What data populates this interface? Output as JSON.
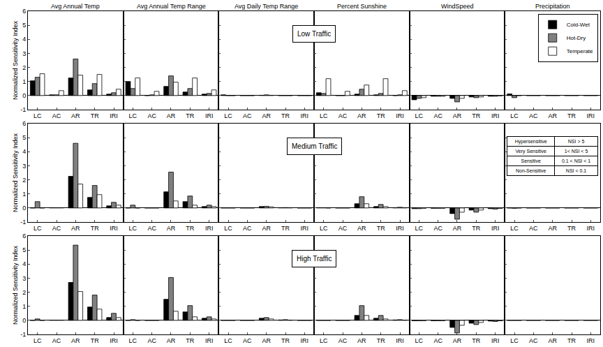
{
  "chart_data": [
    {
      "type": "bar",
      "title": "Avg Annual Temp",
      "y_label": "Normalized Sensitivity Index",
      "categories": [
        "LC",
        "AC",
        "AR",
        "TR",
        "IRI"
      ],
      "series": [
        {
          "name": "Cold-Wet",
          "color": "#000000",
          "values": [
            1.05,
            0.05,
            1.25,
            0.4,
            0.1
          ]
        },
        {
          "name": "Hot-Dry",
          "color": "#808080",
          "values": [
            1.3,
            0.05,
            2.6,
            0.85,
            0.2
          ]
        },
        {
          "name": "Temperate",
          "color": "#ffffff",
          "values": [
            1.55,
            0.35,
            1.45,
            1.5,
            0.45
          ]
        }
      ],
      "ylim": [
        -1,
        6
      ],
      "yticks": [
        -1,
        0,
        1,
        2,
        3,
        4,
        5,
        6
      ],
      "grid": false
    },
    {
      "type": "bar",
      "title": "Avg Annual Temp Range",
      "tick_labels": "x",
      "categories": [
        "LC",
        "AC",
        "AR",
        "TR",
        "IRI"
      ],
      "series": [
        {
          "name": "Cold-Wet",
          "color": "#000000",
          "values": [
            1.0,
            0.0,
            0.65,
            0.25,
            0.1
          ]
        },
        {
          "name": "Hot-Dry",
          "color": "#808080",
          "values": [
            0.5,
            0.05,
            1.4,
            0.5,
            0.15
          ]
        },
        {
          "name": "Temperate",
          "color": "#ffffff",
          "values": [
            1.25,
            0.3,
            0.95,
            1.25,
            0.4
          ]
        }
      ],
      "ylim": [
        -1,
        6
      ],
      "yticks": [
        -1,
        0,
        1,
        2,
        3,
        4,
        5,
        6
      ],
      "grid": false
    },
    {
      "type": "bar",
      "title": "Avg Daily Temp Range",
      "annotation": "Low Traffic",
      "tick_labels": "x",
      "categories": [
        "LC",
        "AC",
        "AR",
        "TR",
        "IRI"
      ],
      "series": [
        {
          "name": "Cold-Wet",
          "color": "#000000",
          "values": [
            0.05,
            0.0,
            0.02,
            0.0,
            0.0
          ]
        },
        {
          "name": "Hot-Dry",
          "color": "#808080",
          "values": [
            0.0,
            0.0,
            0.05,
            0.0,
            0.0
          ]
        },
        {
          "name": "Temperate",
          "color": "#ffffff",
          "values": [
            0.0,
            0.0,
            0.02,
            0.0,
            0.0
          ]
        }
      ],
      "ylim": [
        -1,
        6
      ],
      "yticks": [
        -1,
        0,
        1,
        2,
        3,
        4,
        5,
        6
      ],
      "grid": false
    },
    {
      "type": "bar",
      "title": "Percent Sunshine",
      "tick_labels": "x",
      "categories": [
        "LC",
        "AC",
        "AR",
        "TR",
        "IRI"
      ],
      "series": [
        {
          "name": "Cold-Wet",
          "color": "#000000",
          "values": [
            0.2,
            0.0,
            0.1,
            0.05,
            0.0
          ]
        },
        {
          "name": "Hot-Dry",
          "color": "#808080",
          "values": [
            0.15,
            0.0,
            0.45,
            0.15,
            0.05
          ]
        },
        {
          "name": "Temperate",
          "color": "#ffffff",
          "values": [
            1.2,
            0.3,
            0.75,
            1.2,
            0.35
          ]
        }
      ],
      "ylim": [
        -1,
        6
      ],
      "yticks": [
        -1,
        0,
        1,
        2,
        3,
        4,
        5,
        6
      ],
      "grid": false
    },
    {
      "type": "bar",
      "title": "WindSpeed",
      "tick_labels": "x",
      "categories": [
        "LC",
        "AC",
        "AR",
        "TR",
        "IRI"
      ],
      "series": [
        {
          "name": "Cold-Wet",
          "color": "#000000",
          "values": [
            -0.3,
            -0.05,
            -0.2,
            -0.1,
            -0.05
          ]
        },
        {
          "name": "Hot-Dry",
          "color": "#808080",
          "values": [
            -0.2,
            -0.05,
            -0.45,
            -0.15,
            -0.05
          ]
        },
        {
          "name": "Temperate",
          "color": "#ffffff",
          "values": [
            -0.15,
            -0.05,
            -0.2,
            -0.1,
            -0.02
          ]
        }
      ],
      "ylim": [
        -1,
        6
      ],
      "yticks": [
        -1,
        0,
        1,
        2,
        3,
        4,
        5,
        6
      ],
      "grid": false
    },
    {
      "type": "bar",
      "title": "Precipitation",
      "legend": "upper right",
      "tick_labels": "x",
      "categories": [
        "LC",
        "AC",
        "AR",
        "TR",
        "IRI"
      ],
      "series": [
        {
          "name": "Cold-Wet",
          "color": "#000000",
          "values": [
            0.12,
            0.0,
            0.0,
            0.0,
            0.0
          ]
        },
        {
          "name": "Hot-Dry",
          "color": "#808080",
          "values": [
            -0.15,
            0.0,
            0.0,
            0.0,
            0.0
          ]
        },
        {
          "name": "Temperate",
          "color": "#ffffff",
          "values": [
            0.0,
            0.0,
            0.0,
            0.0,
            0.0
          ]
        }
      ],
      "ylim": [
        -1,
        6
      ],
      "yticks": [
        -1,
        0,
        1,
        2,
        3,
        4,
        5,
        6
      ],
      "grid": false
    },
    {
      "type": "bar",
      "y_label": "Normalized Sensitivity Index",
      "categories": [
        "LC",
        "AC",
        "AR",
        "TR",
        "IRI"
      ],
      "series": [
        {
          "name": "Cold-Wet",
          "color": "#000000",
          "values": [
            0.0,
            0.02,
            2.25,
            0.75,
            0.15
          ]
        },
        {
          "name": "Hot-Dry",
          "color": "#808080",
          "values": [
            0.45,
            0.02,
            4.6,
            1.6,
            0.4
          ]
        },
        {
          "name": "Temperate",
          "color": "#ffffff",
          "values": [
            0.0,
            0.02,
            1.7,
            0.95,
            0.2
          ]
        }
      ],
      "ylim": [
        -1,
        6
      ],
      "yticks": [
        -1,
        0,
        1,
        2,
        3,
        4,
        5,
        6
      ],
      "grid": false
    },
    {
      "type": "bar",
      "tick_labels": "x",
      "categories": [
        "LC",
        "AC",
        "AR",
        "TR",
        "IRI"
      ],
      "series": [
        {
          "name": "Cold-Wet",
          "color": "#000000",
          "values": [
            0.0,
            0.0,
            1.15,
            0.45,
            0.1
          ]
        },
        {
          "name": "Hot-Dry",
          "color": "#808080",
          "values": [
            0.2,
            0.0,
            2.55,
            0.85,
            0.2
          ]
        },
        {
          "name": "Temperate",
          "color": "#ffffff",
          "values": [
            0.0,
            0.0,
            0.5,
            0.2,
            0.1
          ]
        }
      ],
      "ylim": [
        -1,
        6
      ],
      "yticks": [
        -1,
        0,
        1,
        2,
        3,
        4,
        5,
        6
      ],
      "grid": false
    },
    {
      "type": "bar",
      "annotation": "Medium Traffic",
      "tick_labels": "x",
      "categories": [
        "LC",
        "AC",
        "AR",
        "TR",
        "IRI"
      ],
      "series": [
        {
          "name": "Cold-Wet",
          "color": "#000000",
          "values": [
            0.0,
            0.0,
            0.1,
            0.02,
            0.0
          ]
        },
        {
          "name": "Hot-Dry",
          "color": "#808080",
          "values": [
            0.0,
            0.0,
            0.12,
            0.03,
            0.0
          ]
        },
        {
          "name": "Temperate",
          "color": "#ffffff",
          "values": [
            0.0,
            0.0,
            0.08,
            0.02,
            0.0
          ]
        }
      ],
      "ylim": [
        -1,
        6
      ],
      "yticks": [
        -1,
        0,
        1,
        2,
        3,
        4,
        5,
        6
      ],
      "grid": false
    },
    {
      "type": "bar",
      "tick_labels": "x",
      "categories": [
        "LC",
        "AC",
        "AR",
        "TR",
        "IRI"
      ],
      "series": [
        {
          "name": "Cold-Wet",
          "color": "#000000",
          "values": [
            0.02,
            0.0,
            0.3,
            0.1,
            0.02
          ]
        },
        {
          "name": "Hot-Dry",
          "color": "#808080",
          "values": [
            0.02,
            0.0,
            0.8,
            0.25,
            0.05
          ]
        },
        {
          "name": "Temperate",
          "color": "#ffffff",
          "values": [
            0.0,
            0.0,
            0.3,
            0.1,
            0.02
          ]
        }
      ],
      "ylim": [
        -1,
        6
      ],
      "yticks": [
        -1,
        0,
        1,
        2,
        3,
        4,
        5,
        6
      ],
      "grid": false
    },
    {
      "type": "bar",
      "tick_labels": "x",
      "categories": [
        "LC",
        "AC",
        "AR",
        "TR",
        "IRI"
      ],
      "series": [
        {
          "name": "Cold-Wet",
          "color": "#000000",
          "values": [
            -0.05,
            -0.02,
            -0.4,
            -0.15,
            -0.05
          ]
        },
        {
          "name": "Hot-Dry",
          "color": "#808080",
          "values": [
            -0.05,
            -0.02,
            -0.8,
            -0.3,
            -0.08
          ]
        },
        {
          "name": "Temperate",
          "color": "#ffffff",
          "values": [
            -0.02,
            -0.02,
            -0.3,
            -0.15,
            -0.03
          ]
        }
      ],
      "ylim": [
        -1,
        6
      ],
      "yticks": [
        -1,
        0,
        1,
        2,
        3,
        4,
        5,
        6
      ],
      "grid": false
    },
    {
      "type": "bar",
      "tick_labels": "x",
      "table": {
        "rows": [
          [
            "Hypersensitive",
            "NSI > 5"
          ],
          [
            "Very Sensitive",
            "1< NSI < 5"
          ],
          [
            "Sensitive",
            "0.1 < NSI < 1"
          ],
          [
            "Non-Sensitive",
            "NSI < 0.1"
          ]
        ]
      },
      "categories": [
        "LC",
        "AC",
        "AR",
        "TR",
        "IRI"
      ],
      "series": [
        {
          "name": "Cold-Wet",
          "color": "#000000",
          "values": [
            0.0,
            0.0,
            0.0,
            0.0,
            0.0
          ]
        },
        {
          "name": "Hot-Dry",
          "color": "#808080",
          "values": [
            -0.02,
            0.0,
            0.0,
            0.0,
            0.0
          ]
        },
        {
          "name": "Temperate",
          "color": "#ffffff",
          "values": [
            0.0,
            0.0,
            0.0,
            0.0,
            0.0
          ]
        }
      ],
      "ylim": [
        -1,
        6
      ],
      "yticks": [
        -1,
        0,
        1,
        2,
        3,
        4,
        5,
        6
      ],
      "grid": false
    },
    {
      "type": "bar",
      "y_label": "Normalized Sensitivity Index",
      "categories": [
        "LC",
        "AC",
        "AR",
        "TR",
        "IRI"
      ],
      "series": [
        {
          "name": "Cold-Wet",
          "color": "#000000",
          "values": [
            0.0,
            0.02,
            2.7,
            0.95,
            0.2
          ]
        },
        {
          "name": "Hot-Dry",
          "color": "#808080",
          "values": [
            0.1,
            0.02,
            5.35,
            1.8,
            0.5
          ]
        },
        {
          "name": "Temperate",
          "color": "#ffffff",
          "values": [
            0.0,
            0.02,
            2.05,
            0.8,
            0.2
          ]
        }
      ],
      "ylim": [
        -1,
        6
      ],
      "yticks": [
        -1,
        0,
        1,
        2,
        3,
        4,
        5,
        6
      ],
      "grid": false
    },
    {
      "type": "bar",
      "tick_labels": "x",
      "categories": [
        "LC",
        "AC",
        "AR",
        "TR",
        "IRI"
      ],
      "series": [
        {
          "name": "Cold-Wet",
          "color": "#000000",
          "values": [
            0.0,
            0.0,
            1.5,
            0.6,
            0.15
          ]
        },
        {
          "name": "Hot-Dry",
          "color": "#808080",
          "values": [
            0.05,
            0.0,
            3.05,
            1.05,
            0.25
          ]
        },
        {
          "name": "Temperate",
          "color": "#ffffff",
          "values": [
            0.0,
            0.0,
            0.65,
            0.25,
            0.1
          ]
        }
      ],
      "ylim": [
        -1,
        6
      ],
      "yticks": [
        -1,
        0,
        1,
        2,
        3,
        4,
        5,
        6
      ],
      "grid": false
    },
    {
      "type": "bar",
      "annotation": "High Traffic",
      "tick_labels": "x",
      "categories": [
        "LC",
        "AC",
        "AR",
        "TR",
        "IRI"
      ],
      "series": [
        {
          "name": "Cold-Wet",
          "color": "#000000",
          "values": [
            0.0,
            0.0,
            0.15,
            0.03,
            0.0
          ]
        },
        {
          "name": "Hot-Dry",
          "color": "#808080",
          "values": [
            0.0,
            0.0,
            0.2,
            0.05,
            0.0
          ]
        },
        {
          "name": "Temperate",
          "color": "#ffffff",
          "values": [
            0.0,
            0.0,
            0.1,
            0.02,
            0.0
          ]
        }
      ],
      "ylim": [
        -1,
        6
      ],
      "yticks": [
        -1,
        0,
        1,
        2,
        3,
        4,
        5,
        6
      ],
      "grid": false
    },
    {
      "type": "bar",
      "tick_labels": "x",
      "categories": [
        "LC",
        "AC",
        "AR",
        "TR",
        "IRI"
      ],
      "series": [
        {
          "name": "Cold-Wet",
          "color": "#000000",
          "values": [
            0.0,
            0.0,
            0.35,
            0.15,
            0.03
          ]
        },
        {
          "name": "Hot-Dry",
          "color": "#808080",
          "values": [
            0.0,
            0.0,
            1.05,
            0.35,
            0.05
          ]
        },
        {
          "name": "Temperate",
          "color": "#ffffff",
          "values": [
            0.0,
            0.0,
            0.35,
            0.1,
            0.02
          ]
        }
      ],
      "ylim": [
        -1,
        6
      ],
      "yticks": [
        -1,
        0,
        1,
        2,
        3,
        4,
        5,
        6
      ],
      "grid": false
    },
    {
      "type": "bar",
      "tick_labels": "x",
      "categories": [
        "LC",
        "AC",
        "AR",
        "TR",
        "IRI"
      ],
      "series": [
        {
          "name": "Cold-Wet",
          "color": "#000000",
          "values": [
            -0.02,
            -0.02,
            -0.5,
            -0.2,
            -0.05
          ]
        },
        {
          "name": "Hot-Dry",
          "color": "#808080",
          "values": [
            -0.02,
            -0.02,
            -0.9,
            -0.3,
            -0.08
          ]
        },
        {
          "name": "Temperate",
          "color": "#ffffff",
          "values": [
            -0.02,
            -0.02,
            -0.35,
            -0.15,
            -0.03
          ]
        }
      ],
      "ylim": [
        -1,
        6
      ],
      "yticks": [
        -1,
        0,
        1,
        2,
        3,
        4,
        5,
        6
      ],
      "grid": false
    },
    {
      "type": "bar",
      "tick_labels": "x",
      "categories": [
        "LC",
        "AC",
        "AR",
        "TR",
        "IRI"
      ],
      "series": [
        {
          "name": "Cold-Wet",
          "color": "#000000",
          "values": [
            0.0,
            0.0,
            0.0,
            0.0,
            0.0
          ]
        },
        {
          "name": "Hot-Dry",
          "color": "#808080",
          "values": [
            0.0,
            0.0,
            0.0,
            0.0,
            0.0
          ]
        },
        {
          "name": "Temperate",
          "color": "#ffffff",
          "values": [
            0.0,
            0.0,
            0.0,
            0.0,
            0.0
          ]
        }
      ],
      "ylim": [
        -1,
        6
      ],
      "yticks": [
        -1,
        0,
        1,
        2,
        3,
        4,
        5,
        6
      ],
      "grid": false
    }
  ]
}
